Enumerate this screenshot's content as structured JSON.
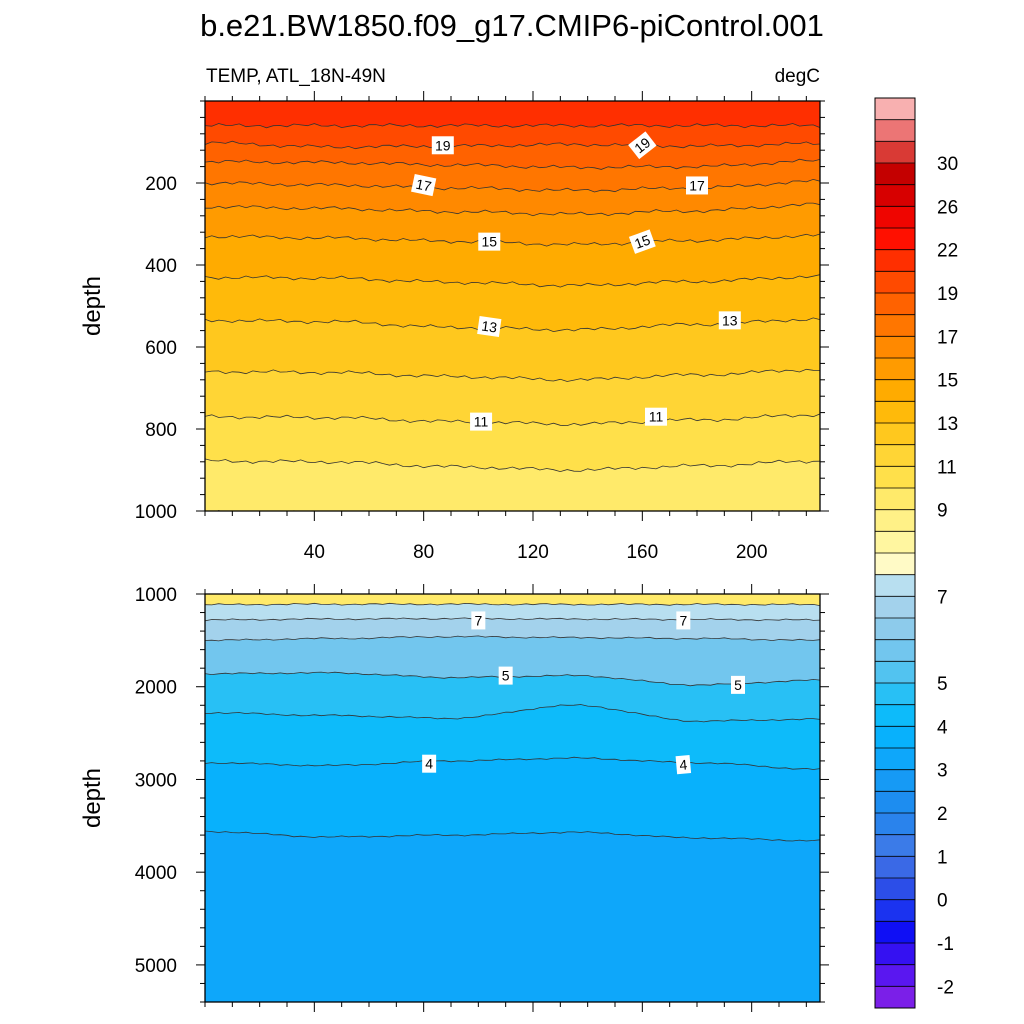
{
  "chart_data": {
    "type": "contour",
    "title": "b.e21.BW1850.f09_g17.CMIP6-piControl.001",
    "variable_label": "TEMP, ATL_18N-49N",
    "units_label": "degC",
    "x": {
      "min": 0,
      "max": 225,
      "ticks": [
        40,
        80,
        120,
        160,
        200
      ]
    },
    "colorbar": {
      "levels": [
        -2.5,
        -2,
        -1.5,
        -1,
        -0.5,
        0,
        0.5,
        1,
        1.5,
        2,
        2.5,
        3,
        3.5,
        4,
        4.5,
        5,
        5.5,
        6,
        6.5,
        7,
        7.5,
        8,
        8.5,
        9,
        10,
        11,
        12,
        13,
        14,
        15,
        16,
        17,
        18,
        19,
        20,
        22,
        24,
        26,
        28,
        30,
        32,
        34
      ],
      "colors": [
        "#7b1fe8",
        "#5a17f0",
        "#3511f2",
        "#0f0ff5",
        "#1b33f0",
        "#2c4ee8",
        "#3a69e6",
        "#3b7be8",
        "#2a83ec",
        "#1d8df0",
        "#169af5",
        "#0ea7fa",
        "#08b1fc",
        "#0dbbfa",
        "#28c0f5",
        "#52c3f0",
        "#72c6ee",
        "#8dcbeb",
        "#a3d2ec",
        "#b8dff0",
        "#fffac6",
        "#fff6a0",
        "#fff187",
        "#ffea6a",
        "#ffe04a",
        "#ffd535",
        "#ffc81e",
        "#ffba0a",
        "#ffab00",
        "#ff9b00",
        "#ff8900",
        "#ff7600",
        "#ff6200",
        "#ff4a00",
        "#ff2f00",
        "#ff1000",
        "#ef0500",
        "#d70000",
        "#c40000",
        "#d93a35",
        "#ec7575",
        "#f8b0b0"
      ],
      "labels": [
        {
          "level": -2,
          "text": "-2"
        },
        {
          "level": -1,
          "text": "-1"
        },
        {
          "level": 0,
          "text": "0"
        },
        {
          "level": 1,
          "text": "1"
        },
        {
          "level": 2,
          "text": "2"
        },
        {
          "level": 3,
          "text": "3"
        },
        {
          "level": 4,
          "text": "4"
        },
        {
          "level": 5,
          "text": "5"
        },
        {
          "level": 7,
          "text": "7"
        },
        {
          "level": 9,
          "text": "9"
        },
        {
          "level": 11,
          "text": "11"
        },
        {
          "level": 13,
          "text": "13"
        },
        {
          "level": 15,
          "text": "15"
        },
        {
          "level": 17,
          "text": "17"
        },
        {
          "level": 19,
          "text": "19"
        },
        {
          "level": 22,
          "text": "22"
        },
        {
          "level": 26,
          "text": "26"
        },
        {
          "level": 30,
          "text": "30"
        }
      ]
    },
    "panels": [
      {
        "ylabel": "depth",
        "ylim": [
          0,
          1000
        ],
        "yticks": [
          200,
          400,
          600,
          800,
          1000
        ],
        "show_x_tick_labels": true,
        "surface_temp": 20.6,
        "isolines": [
          {
            "value": 20,
            "depths": [
              60,
              60,
              60,
              60,
              60,
              60
            ]
          },
          {
            "value": 19,
            "depths": [
              102,
              112,
              110,
              106,
              110,
              104
            ]
          },
          {
            "value": 18,
            "depths": [
              148,
              150,
              156,
              162,
              160,
              146
            ]
          },
          {
            "value": 17,
            "depths": [
              200,
              205,
              212,
              218,
              212,
              196
            ]
          },
          {
            "value": 16,
            "depths": [
              258,
              262,
              270,
              276,
              268,
              252
            ]
          },
          {
            "value": 15,
            "depths": [
              330,
              334,
              342,
              350,
              340,
              328
            ]
          },
          {
            "value": 14,
            "depths": [
              430,
              432,
              442,
              450,
              440,
              428
            ]
          },
          {
            "value": 13,
            "depths": [
              535,
              538,
              552,
              558,
              545,
              532
            ]
          },
          {
            "value": 12,
            "depths": [
              660,
              662,
              672,
              680,
              668,
              655
            ]
          },
          {
            "value": 11,
            "depths": [
              770,
              772,
              782,
              788,
              778,
              765
            ]
          },
          {
            "value": 10,
            "depths": [
              878,
              880,
              892,
              900,
              890,
              878
            ]
          },
          {
            "value": 9,
            "depths": [
              1004,
              1004,
              1006,
              1006,
              1004,
              1004
            ]
          }
        ],
        "contour_labels": [
          {
            "text": "19",
            "x": 87,
            "depth": 108,
            "angle": 0
          },
          {
            "text": "19",
            "x": 160,
            "depth": 108,
            "angle": -38
          },
          {
            "text": "17",
            "x": 80,
            "depth": 205,
            "angle": 12
          },
          {
            "text": "17",
            "x": 180,
            "depth": 206,
            "angle": 0
          },
          {
            "text": "15",
            "x": 104,
            "depth": 343,
            "angle": 0
          },
          {
            "text": "15",
            "x": 160,
            "depth": 343,
            "angle": -20
          },
          {
            "text": "13",
            "x": 104,
            "depth": 550,
            "angle": 8
          },
          {
            "text": "13",
            "x": 192,
            "depth": 535,
            "angle": 0
          },
          {
            "text": "11",
            "x": 101,
            "depth": 782,
            "angle": 0
          },
          {
            "text": "11",
            "x": 165,
            "depth": 770,
            "angle": 0
          }
        ]
      },
      {
        "ylabel": "depth",
        "ylim": [
          1000,
          5400
        ],
        "yticks": [
          1000,
          2000,
          3000,
          4000,
          5000
        ],
        "show_x_tick_labels": false,
        "surface_temp": 9,
        "isolines": [
          {
            "value": 7.5,
            "depths": [
              1115,
              1110,
              1110,
              1112,
              1112,
              1115
            ]
          },
          {
            "value": 7,
            "depths": [
              1280,
              1270,
              1265,
              1270,
              1275,
              1280
            ]
          },
          {
            "value": 6,
            "depths": [
              1500,
              1480,
              1460,
              1470,
              1480,
              1500
            ]
          },
          {
            "value": 5,
            "depths": [
              1860,
              1850,
              1900,
              1880,
              1980,
              1930
            ]
          },
          {
            "value": 4.5,
            "depths": [
              2280,
              2310,
              2340,
              2200,
              2370,
              2350
            ]
          },
          {
            "value": 4,
            "depths": [
              2820,
              2850,
              2800,
              2770,
              2820,
              2890
            ]
          },
          {
            "value": 3.5,
            "depths": [
              3560,
              3620,
              3600,
              3570,
              3630,
              3660
            ]
          }
        ],
        "contour_labels": [
          {
            "text": "7",
            "x": 100,
            "depth": 1285,
            "angle": 0
          },
          {
            "text": "7",
            "x": 175,
            "depth": 1285,
            "angle": 0
          },
          {
            "text": "5",
            "x": 110,
            "depth": 1880,
            "angle": 0
          },
          {
            "text": "5",
            "x": 195,
            "depth": 1980,
            "angle": 0
          },
          {
            "text": "4",
            "x": 82,
            "depth": 2830,
            "angle": 0
          },
          {
            "text": "4",
            "x": 175,
            "depth": 2840,
            "angle": -5
          }
        ]
      }
    ]
  }
}
